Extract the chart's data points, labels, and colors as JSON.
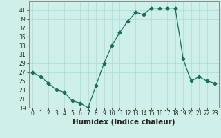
{
  "x": [
    0,
    1,
    2,
    3,
    4,
    5,
    6,
    7,
    8,
    9,
    10,
    11,
    12,
    13,
    14,
    15,
    16,
    17,
    18,
    19,
    20,
    21,
    22,
    23
  ],
  "y": [
    27,
    26,
    24.5,
    23,
    22.5,
    20.5,
    20,
    19,
    24,
    29,
    33,
    36,
    38.5,
    40.5,
    40,
    41.5,
    41.5,
    41.5,
    41.5,
    30,
    25,
    26,
    25,
    24.5
  ],
  "line_color": "#1a6b5a",
  "marker": "D",
  "marker_size": 2.5,
  "bg_color": "#cef0e8",
  "grid_color": "#aaddd4",
  "xlabel": "Humidex (Indice chaleur)",
  "ylim": [
    19,
    43
  ],
  "xlim": [
    -0.5,
    23.5
  ],
  "yticks": [
    19,
    21,
    23,
    25,
    27,
    29,
    31,
    33,
    35,
    37,
    39,
    41
  ],
  "xticks": [
    0,
    1,
    2,
    3,
    4,
    5,
    6,
    7,
    8,
    9,
    10,
    11,
    12,
    13,
    14,
    15,
    16,
    17,
    18,
    19,
    20,
    21,
    22,
    23
  ],
  "tick_fontsize": 5.5,
  "xlabel_fontsize": 7.5
}
